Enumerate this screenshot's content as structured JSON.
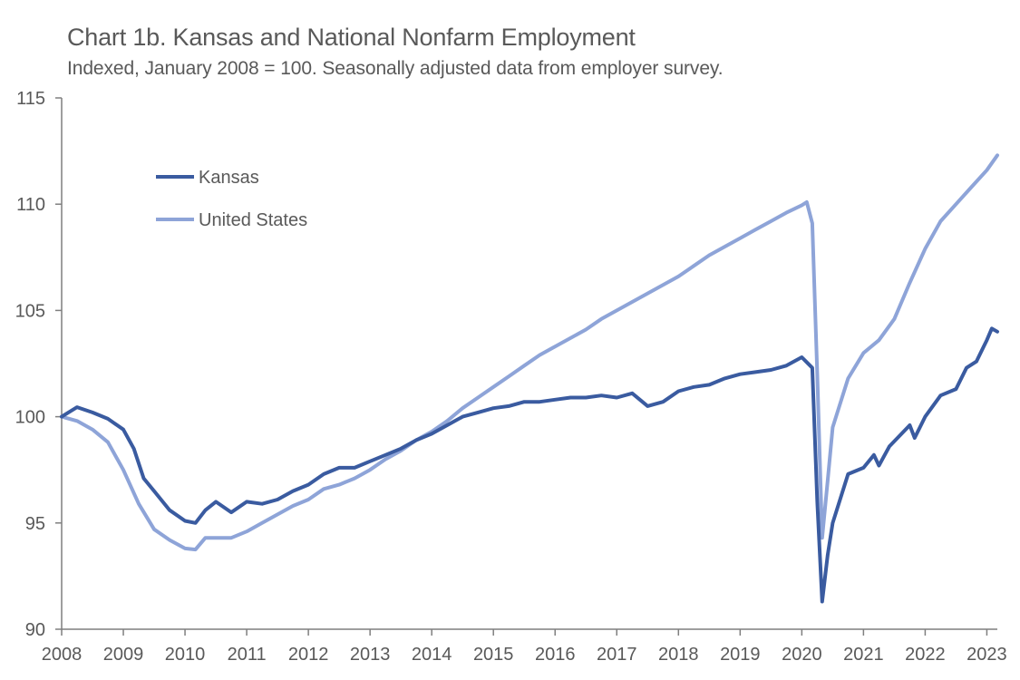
{
  "chart_data": {
    "type": "line",
    "title": "Chart 1b. Kansas and National Nonfarm Employment",
    "subtitle": "Indexed, January 2008 = 100. Seasonally adjusted data from employer survey.",
    "xlabel": "",
    "ylabel": "",
    "x_tick_labels": [
      "2008",
      "2009",
      "2010",
      "2011",
      "2012",
      "2013",
      "2014",
      "2015",
      "2016",
      "2017",
      "2018",
      "2019",
      "2020",
      "2021",
      "2022",
      "2023"
    ],
    "y_tick_labels": [
      "90",
      "95",
      "100",
      "105",
      "110",
      "115"
    ],
    "xlim": [
      2008.0,
      2023.17
    ],
    "ylim": [
      90,
      115
    ],
    "grid": false,
    "legend_position": "upper-left",
    "series": [
      {
        "name": "Kansas",
        "color": "#3a5ba0",
        "points": [
          [
            2008.0,
            100.0
          ],
          [
            2008.25,
            100.45
          ],
          [
            2008.5,
            100.2
          ],
          [
            2008.75,
            99.9
          ],
          [
            2009.0,
            99.4
          ],
          [
            2009.17,
            98.5
          ],
          [
            2009.33,
            97.1
          ],
          [
            2009.5,
            96.5
          ],
          [
            2009.75,
            95.6
          ],
          [
            2010.0,
            95.1
          ],
          [
            2010.17,
            95.0
          ],
          [
            2010.33,
            95.6
          ],
          [
            2010.5,
            96.0
          ],
          [
            2010.75,
            95.5
          ],
          [
            2011.0,
            96.0
          ],
          [
            2011.25,
            95.9
          ],
          [
            2011.5,
            96.1
          ],
          [
            2011.75,
            96.5
          ],
          [
            2012.0,
            96.8
          ],
          [
            2012.25,
            97.3
          ],
          [
            2012.5,
            97.6
          ],
          [
            2012.75,
            97.6
          ],
          [
            2013.0,
            97.9
          ],
          [
            2013.25,
            98.2
          ],
          [
            2013.5,
            98.5
          ],
          [
            2013.75,
            98.9
          ],
          [
            2014.0,
            99.2
          ],
          [
            2014.25,
            99.6
          ],
          [
            2014.5,
            100.0
          ],
          [
            2014.75,
            100.2
          ],
          [
            2015.0,
            100.4
          ],
          [
            2015.25,
            100.5
          ],
          [
            2015.5,
            100.7
          ],
          [
            2015.75,
            100.7
          ],
          [
            2016.0,
            100.8
          ],
          [
            2016.25,
            100.9
          ],
          [
            2016.5,
            100.9
          ],
          [
            2016.75,
            101.0
          ],
          [
            2017.0,
            100.9
          ],
          [
            2017.25,
            101.1
          ],
          [
            2017.5,
            100.5
          ],
          [
            2017.75,
            100.7
          ],
          [
            2018.0,
            101.2
          ],
          [
            2018.25,
            101.4
          ],
          [
            2018.5,
            101.5
          ],
          [
            2018.75,
            101.8
          ],
          [
            2019.0,
            102.0
          ],
          [
            2019.25,
            102.1
          ],
          [
            2019.5,
            102.2
          ],
          [
            2019.75,
            102.4
          ],
          [
            2020.0,
            102.8
          ],
          [
            2020.17,
            102.3
          ],
          [
            2020.25,
            96.0
          ],
          [
            2020.33,
            91.3
          ],
          [
            2020.42,
            93.5
          ],
          [
            2020.5,
            95.0
          ],
          [
            2020.75,
            97.3
          ],
          [
            2021.0,
            97.6
          ],
          [
            2021.17,
            98.2
          ],
          [
            2021.25,
            97.7
          ],
          [
            2021.42,
            98.6
          ],
          [
            2021.75,
            99.6
          ],
          [
            2021.83,
            99.0
          ],
          [
            2022.0,
            100.0
          ],
          [
            2022.25,
            101.0
          ],
          [
            2022.5,
            101.3
          ],
          [
            2022.67,
            102.3
          ],
          [
            2022.83,
            102.6
          ],
          [
            2023.0,
            103.6
          ],
          [
            2023.08,
            104.15
          ],
          [
            2023.17,
            104.0
          ]
        ]
      },
      {
        "name": "United States",
        "color": "#8ea4d8",
        "points": [
          [
            2008.0,
            100.0
          ],
          [
            2008.25,
            99.8
          ],
          [
            2008.5,
            99.4
          ],
          [
            2008.75,
            98.8
          ],
          [
            2009.0,
            97.5
          ],
          [
            2009.25,
            95.9
          ],
          [
            2009.5,
            94.7
          ],
          [
            2009.75,
            94.2
          ],
          [
            2010.0,
            93.8
          ],
          [
            2010.17,
            93.75
          ],
          [
            2010.33,
            94.3
          ],
          [
            2010.5,
            94.3
          ],
          [
            2010.75,
            94.3
          ],
          [
            2011.0,
            94.6
          ],
          [
            2011.25,
            95.0
          ],
          [
            2011.5,
            95.4
          ],
          [
            2011.75,
            95.8
          ],
          [
            2012.0,
            96.1
          ],
          [
            2012.25,
            96.6
          ],
          [
            2012.5,
            96.8
          ],
          [
            2012.75,
            97.1
          ],
          [
            2013.0,
            97.5
          ],
          [
            2013.25,
            98.0
          ],
          [
            2013.5,
            98.4
          ],
          [
            2013.75,
            98.9
          ],
          [
            2014.0,
            99.3
          ],
          [
            2014.25,
            99.8
          ],
          [
            2014.5,
            100.4
          ],
          [
            2014.75,
            100.9
          ],
          [
            2015.0,
            101.4
          ],
          [
            2015.25,
            101.9
          ],
          [
            2015.5,
            102.4
          ],
          [
            2015.75,
            102.9
          ],
          [
            2016.0,
            103.3
          ],
          [
            2016.25,
            103.7
          ],
          [
            2016.5,
            104.1
          ],
          [
            2016.75,
            104.6
          ],
          [
            2017.0,
            105.0
          ],
          [
            2017.25,
            105.4
          ],
          [
            2017.5,
            105.8
          ],
          [
            2017.75,
            106.2
          ],
          [
            2018.0,
            106.6
          ],
          [
            2018.25,
            107.1
          ],
          [
            2018.5,
            107.6
          ],
          [
            2018.75,
            108.0
          ],
          [
            2019.0,
            108.4
          ],
          [
            2019.25,
            108.8
          ],
          [
            2019.5,
            109.2
          ],
          [
            2019.75,
            109.6
          ],
          [
            2020.0,
            109.95
          ],
          [
            2020.08,
            110.1
          ],
          [
            2020.17,
            109.1
          ],
          [
            2020.25,
            102.0
          ],
          [
            2020.33,
            94.3
          ],
          [
            2020.42,
            97.0
          ],
          [
            2020.5,
            99.5
          ],
          [
            2020.75,
            101.8
          ],
          [
            2021.0,
            103.0
          ],
          [
            2021.25,
            103.6
          ],
          [
            2021.5,
            104.6
          ],
          [
            2021.75,
            106.3
          ],
          [
            2022.0,
            107.9
          ],
          [
            2022.25,
            109.2
          ],
          [
            2022.5,
            110.0
          ],
          [
            2022.75,
            110.8
          ],
          [
            2023.0,
            111.6
          ],
          [
            2023.17,
            112.3
          ]
        ]
      }
    ]
  }
}
